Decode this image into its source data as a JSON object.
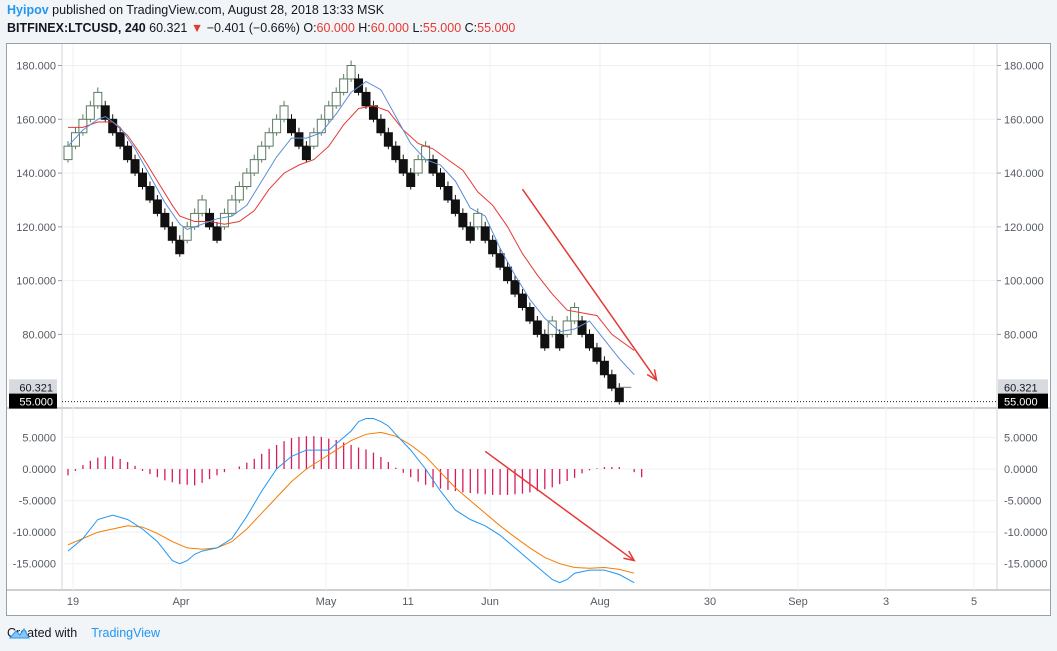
{
  "header": {
    "author": "Hyipov",
    "published_text": "published on TradingView.com, August 28, 2018 13:33 MSK",
    "symbol": "BITFINEX:LTCUSD, 240",
    "last": "60.321",
    "change": "−0.401 (−0.66%)",
    "o_label": "O:",
    "o_value": "60.000",
    "h_label": "H:",
    "h_value": "60.000",
    "l_label": "L:",
    "l_value": "55.000",
    "c_label": "C:",
    "c_value": "55.000"
  },
  "footer": {
    "created_with": "Created with",
    "brand": "TradingView"
  },
  "colors": {
    "brick_up": "#5d7a60",
    "brick_down": "#111111",
    "ma_fast": "#5b8dd6",
    "ma_slow": "#e53935",
    "macd_line": "#2196f3",
    "signal_line": "#f57c00",
    "histogram": "#d81b60",
    "arrow": "#e53935"
  },
  "chart_data": [
    {
      "type": "renko",
      "symbol": "BITFINEX:LTCUSD",
      "brick_size": 5,
      "price_axis": {
        "range": [
          53,
          188
        ],
        "ticks": [
          "80.000",
          "100.000",
          "120.000",
          "140.000",
          "160.000",
          "180.000"
        ]
      },
      "last_price_label": "60.321",
      "close_price_label": "55.000",
      "x_labels": [
        "19",
        "Apr",
        "May",
        "11",
        "Jun",
        "Aug",
        "30",
        "Sep",
        "3",
        "5"
      ],
      "bricks": [
        {
          "low": 145,
          "dir": "up"
        },
        {
          "low": 150,
          "dir": "up"
        },
        {
          "low": 155,
          "dir": "up"
        },
        {
          "low": 160,
          "dir": "up"
        },
        {
          "low": 165,
          "dir": "up"
        },
        {
          "low": 160,
          "dir": "down"
        },
        {
          "low": 155,
          "dir": "down"
        },
        {
          "low": 150,
          "dir": "down"
        },
        {
          "low": 145,
          "dir": "down"
        },
        {
          "low": 140,
          "dir": "down"
        },
        {
          "low": 135,
          "dir": "down"
        },
        {
          "low": 130,
          "dir": "down"
        },
        {
          "low": 125,
          "dir": "down"
        },
        {
          "low": 120,
          "dir": "down"
        },
        {
          "low": 115,
          "dir": "down"
        },
        {
          "low": 110,
          "dir": "down"
        },
        {
          "low": 115,
          "dir": "up"
        },
        {
          "low": 120,
          "dir": "up"
        },
        {
          "low": 125,
          "dir": "up"
        },
        {
          "low": 120,
          "dir": "down"
        },
        {
          "low": 115,
          "dir": "down"
        },
        {
          "low": 120,
          "dir": "up"
        },
        {
          "low": 125,
          "dir": "up"
        },
        {
          "low": 130,
          "dir": "up"
        },
        {
          "low": 135,
          "dir": "up"
        },
        {
          "low": 140,
          "dir": "up"
        },
        {
          "low": 145,
          "dir": "up"
        },
        {
          "low": 150,
          "dir": "up"
        },
        {
          "low": 155,
          "dir": "up"
        },
        {
          "low": 160,
          "dir": "up"
        },
        {
          "low": 155,
          "dir": "down"
        },
        {
          "low": 150,
          "dir": "down"
        },
        {
          "low": 145,
          "dir": "down"
        },
        {
          "low": 150,
          "dir": "up"
        },
        {
          "low": 155,
          "dir": "up"
        },
        {
          "low": 160,
          "dir": "up"
        },
        {
          "low": 165,
          "dir": "up"
        },
        {
          "low": 170,
          "dir": "up"
        },
        {
          "low": 175,
          "dir": "up"
        },
        {
          "low": 170,
          "dir": "down"
        },
        {
          "low": 165,
          "dir": "down"
        },
        {
          "low": 160,
          "dir": "down"
        },
        {
          "low": 155,
          "dir": "down"
        },
        {
          "low": 150,
          "dir": "down"
        },
        {
          "low": 145,
          "dir": "down"
        },
        {
          "low": 140,
          "dir": "down"
        },
        {
          "low": 135,
          "dir": "down"
        },
        {
          "low": 140,
          "dir": "up"
        },
        {
          "low": 145,
          "dir": "up"
        },
        {
          "low": 140,
          "dir": "down"
        },
        {
          "low": 135,
          "dir": "down"
        },
        {
          "low": 130,
          "dir": "down"
        },
        {
          "low": 125,
          "dir": "down"
        },
        {
          "low": 120,
          "dir": "down"
        },
        {
          "low": 115,
          "dir": "down"
        },
        {
          "low": 120,
          "dir": "up"
        },
        {
          "low": 115,
          "dir": "down"
        },
        {
          "low": 110,
          "dir": "down"
        },
        {
          "low": 105,
          "dir": "down"
        },
        {
          "low": 100,
          "dir": "down"
        },
        {
          "low": 95,
          "dir": "down"
        },
        {
          "low": 90,
          "dir": "down"
        },
        {
          "low": 85,
          "dir": "down"
        },
        {
          "low": 80,
          "dir": "down"
        },
        {
          "low": 75,
          "dir": "down"
        },
        {
          "low": 80,
          "dir": "up"
        },
        {
          "low": 75,
          "dir": "down"
        },
        {
          "low": 80,
          "dir": "up"
        },
        {
          "low": 85,
          "dir": "up"
        },
        {
          "low": 80,
          "dir": "down"
        },
        {
          "low": 75,
          "dir": "down"
        },
        {
          "low": 70,
          "dir": "down"
        },
        {
          "low": 65,
          "dir": "down"
        },
        {
          "low": 60,
          "dir": "down"
        },
        {
          "low": 55,
          "dir": "down"
        }
      ],
      "ma_fast": [
        [
          0,
          150
        ],
        [
          2,
          156
        ],
        [
          4,
          160
        ],
        [
          5,
          161
        ],
        [
          7,
          157
        ],
        [
          9,
          149
        ],
        [
          11,
          139
        ],
        [
          13,
          129
        ],
        [
          15,
          121
        ],
        [
          16,
          119
        ],
        [
          18,
          121
        ],
        [
          20,
          123
        ],
        [
          22,
          124
        ],
        [
          24,
          128
        ],
        [
          26,
          137
        ],
        [
          28,
          146
        ],
        [
          30,
          153
        ],
        [
          32,
          153
        ],
        [
          34,
          155
        ],
        [
          36,
          162
        ],
        [
          38,
          170
        ],
        [
          40,
          174
        ],
        [
          42,
          171
        ],
        [
          44,
          161
        ],
        [
          46,
          151
        ],
        [
          48,
          145
        ],
        [
          50,
          143
        ],
        [
          52,
          137
        ],
        [
          54,
          127
        ],
        [
          56,
          124
        ],
        [
          58,
          112
        ],
        [
          60,
          102
        ],
        [
          62,
          93
        ],
        [
          64,
          86
        ],
        [
          66,
          81
        ],
        [
          68,
          82
        ],
        [
          70,
          85
        ],
        [
          72,
          78
        ],
        [
          74,
          71
        ],
        [
          76,
          65
        ]
      ],
      "ma_slow": [
        [
          0,
          157
        ],
        [
          2,
          157
        ],
        [
          4,
          159
        ],
        [
          6,
          159
        ],
        [
          8,
          154
        ],
        [
          10,
          146
        ],
        [
          12,
          137
        ],
        [
          14,
          128
        ],
        [
          15,
          124
        ],
        [
          17,
          122
        ],
        [
          19,
          122
        ],
        [
          21,
          121
        ],
        [
          23,
          122
        ],
        [
          25,
          126
        ],
        [
          27,
          134
        ],
        [
          29,
          140
        ],
        [
          31,
          143
        ],
        [
          33,
          145
        ],
        [
          35,
          150
        ],
        [
          37,
          158
        ],
        [
          39,
          164
        ],
        [
          41,
          165
        ],
        [
          43,
          163
        ],
        [
          45,
          156
        ],
        [
          47,
          151
        ],
        [
          49,
          149
        ],
        [
          51,
          145
        ],
        [
          53,
          141
        ],
        [
          55,
          133
        ],
        [
          57,
          128
        ],
        [
          59,
          120
        ],
        [
          61,
          110
        ],
        [
          63,
          102
        ],
        [
          65,
          95
        ],
        [
          67,
          89
        ],
        [
          69,
          88
        ],
        [
          71,
          87
        ],
        [
          73,
          80
        ],
        [
          76,
          74
        ]
      ],
      "arrow": {
        "from": [
          61,
          134
        ],
        "to": [
          79,
          63
        ]
      }
    },
    {
      "type": "macd",
      "value_axis": {
        "range": [
          -19,
          9.5
        ],
        "ticks": [
          "5.0000",
          "0.0000",
          "-5.0000",
          "-10.0000",
          "-15.0000"
        ]
      },
      "macd": [
        [
          0,
          -13
        ],
        [
          2,
          -11
        ],
        [
          4,
          -8
        ],
        [
          6,
          -7.3
        ],
        [
          8,
          -8
        ],
        [
          10,
          -9.5
        ],
        [
          12,
          -11.5
        ],
        [
          14,
          -14.5
        ],
        [
          15,
          -15
        ],
        [
          16,
          -14.5
        ],
        [
          17,
          -13.5
        ],
        [
          18,
          -13
        ],
        [
          20,
          -12.5
        ],
        [
          22,
          -11
        ],
        [
          24,
          -7.5
        ],
        [
          26,
          -3.5
        ],
        [
          28,
          0
        ],
        [
          30,
          2
        ],
        [
          32,
          3
        ],
        [
          34,
          3
        ],
        [
          35,
          3
        ],
        [
          36,
          4
        ],
        [
          38,
          6
        ],
        [
          39,
          7.5
        ],
        [
          40,
          8
        ],
        [
          41,
          8
        ],
        [
          42,
          7.5
        ],
        [
          43,
          6.8
        ],
        [
          44,
          5.5
        ],
        [
          46,
          3
        ],
        [
          48,
          0
        ],
        [
          50,
          -3.5
        ],
        [
          52,
          -6.5
        ],
        [
          54,
          -8
        ],
        [
          56,
          -9
        ],
        [
          58,
          -10.5
        ],
        [
          60,
          -12.5
        ],
        [
          62,
          -14.5
        ],
        [
          64,
          -16.5
        ],
        [
          65,
          -17.5
        ],
        [
          66,
          -18
        ],
        [
          67,
          -17.5
        ],
        [
          68,
          -16.5
        ],
        [
          70,
          -16
        ],
        [
          72,
          -16
        ],
        [
          74,
          -16.7
        ],
        [
          76,
          -18
        ]
      ],
      "signal": [
        [
          0,
          -12
        ],
        [
          2,
          -11
        ],
        [
          4,
          -10
        ],
        [
          6,
          -9.5
        ],
        [
          8,
          -9
        ],
        [
          10,
          -9.2
        ],
        [
          12,
          -10.2
        ],
        [
          14,
          -11.5
        ],
        [
          16,
          -12.5
        ],
        [
          18,
          -12.7
        ],
        [
          20,
          -12.5
        ],
        [
          22,
          -11.5
        ],
        [
          24,
          -9.5
        ],
        [
          26,
          -7
        ],
        [
          28,
          -4.5
        ],
        [
          30,
          -2
        ],
        [
          32,
          0
        ],
        [
          34,
          1.5
        ],
        [
          36,
          3
        ],
        [
          38,
          4.5
        ],
        [
          40,
          5.5
        ],
        [
          42,
          5.8
        ],
        [
          44,
          5.2
        ],
        [
          46,
          3.8
        ],
        [
          48,
          2
        ],
        [
          50,
          -0.5
        ],
        [
          52,
          -3
        ],
        [
          54,
          -5
        ],
        [
          56,
          -7
        ],
        [
          58,
          -9
        ],
        [
          60,
          -10.8
        ],
        [
          62,
          -12.5
        ],
        [
          64,
          -14
        ],
        [
          66,
          -15
        ],
        [
          68,
          -15.6
        ],
        [
          70,
          -15.7
        ],
        [
          72,
          -15.6
        ],
        [
          74,
          -15.9
        ],
        [
          76,
          -16.5
        ]
      ],
      "histogram": [
        -1,
        -0.3,
        0.6,
        1.3,
        1.8,
        2,
        2,
        1.6,
        1.1,
        0.5,
        -0.3,
        -0.8,
        -1.3,
        -1.8,
        -2.1,
        -2.4,
        -2.5,
        -2.6,
        -2.2,
        -1.6,
        -1.0,
        -0.5,
        0,
        0.4,
        1,
        1.6,
        2.4,
        3.2,
        3.8,
        4.4,
        4.9,
        5.1,
        5.2,
        5.2,
        5.1,
        4.8,
        4.6,
        4.2,
        3.8,
        3.4,
        3.1,
        2.6,
        1.9,
        1.1,
        0.2,
        -0.6,
        -1.3,
        -2,
        -2.5,
        -2.9,
        -3.1,
        -3.3,
        -3.5,
        -3.7,
        -3.8,
        -3.9,
        -4,
        -4.1,
        -4.1,
        -4.1,
        -4,
        -3.9,
        -3.7,
        -3.5,
        -3.2,
        -2.9,
        -2.4,
        -1.9,
        -1.4,
        -0.7,
        -0.2,
        0.1,
        0.3,
        0.3,
        0.3,
        0,
        -0.5,
        -1.3
      ],
      "arrow": {
        "from": [
          56,
          2.8
        ],
        "to": [
          76,
          -14.5
        ]
      }
    }
  ]
}
